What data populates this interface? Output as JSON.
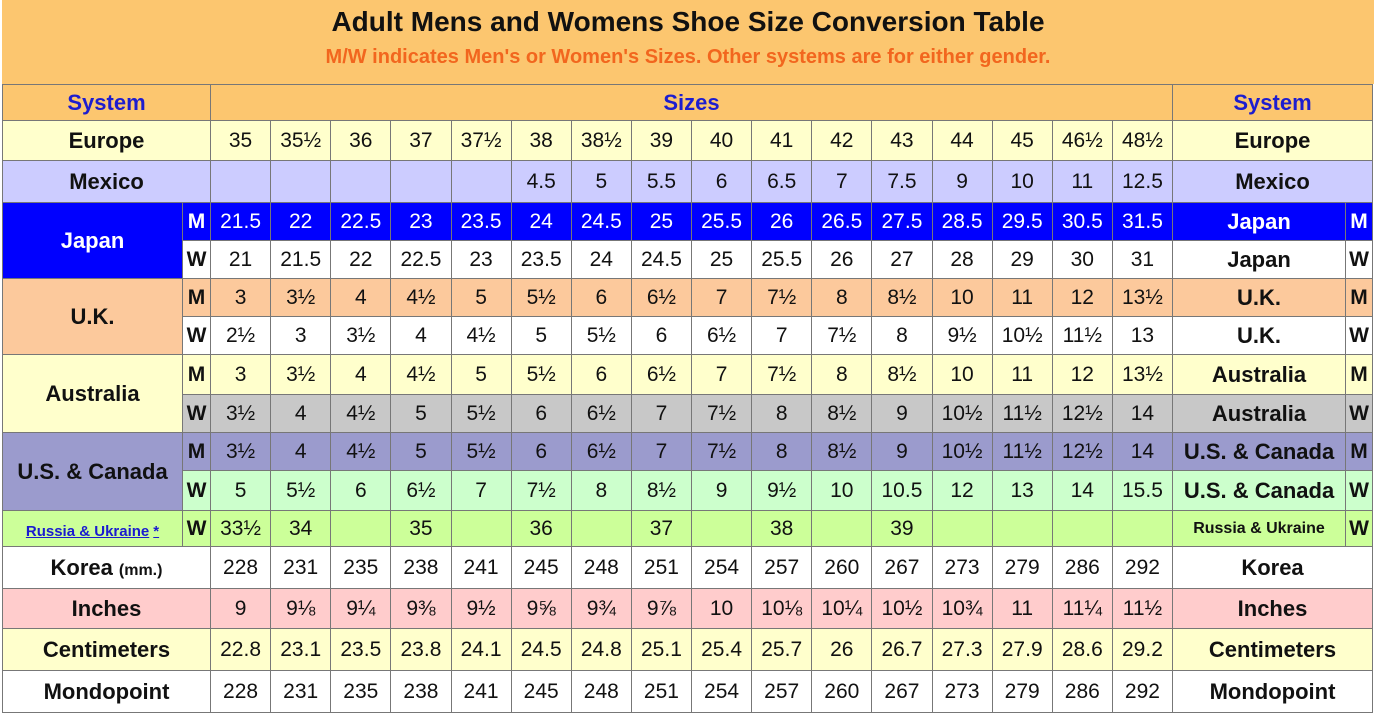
{
  "header": {
    "title": "Adult Mens and Womens Shoe Size Conversion Table",
    "subtitle": "M/W indicates Men's or Women's Sizes. Other systems are for either gender."
  },
  "table": {
    "columns": {
      "system": "System",
      "sizes": "Sizes",
      "system_right": "System"
    },
    "rows": [
      {
        "system": "Europe",
        "values": [
          35,
          "35½",
          36,
          37,
          "37½",
          38,
          "38½",
          39,
          40,
          41,
          42,
          43,
          44,
          45,
          "46½",
          "48½"
        ]
      },
      {
        "system": "Mexico",
        "values": [
          null,
          null,
          null,
          null,
          null,
          4.5,
          5,
          5.5,
          6,
          6.5,
          7,
          7.5,
          9,
          10,
          11,
          12.5
        ]
      },
      {
        "system": "Japan",
        "gender": "M",
        "values": [
          21.5,
          22,
          22.5,
          23,
          23.5,
          24,
          24.5,
          25,
          25.5,
          26,
          26.5,
          27.5,
          28.5,
          29.5,
          30.5,
          31.5
        ]
      },
      {
        "system": "Japan",
        "gender": "W",
        "values": [
          21,
          21.5,
          22,
          22.5,
          23,
          23.5,
          24,
          24.5,
          25,
          25.5,
          26,
          27,
          28,
          29,
          30,
          31
        ]
      },
      {
        "system": "U.K.",
        "gender": "M",
        "values": [
          3,
          "3½",
          4,
          "4½",
          5,
          "5½",
          6,
          "6½",
          7,
          "7½",
          8,
          "8½",
          10,
          11,
          12,
          "13½"
        ]
      },
      {
        "system": "U.K.",
        "gender": "W",
        "values": [
          "2½",
          3,
          "3½",
          4,
          "4½",
          5,
          "5½",
          6,
          "6½",
          7,
          "7½",
          8,
          "9½",
          "10½",
          "11½",
          13
        ]
      },
      {
        "system": "Australia",
        "gender": "M",
        "values": [
          3,
          "3½",
          4,
          "4½",
          5,
          "5½",
          6,
          "6½",
          7,
          "7½",
          8,
          "8½",
          10,
          11,
          12,
          "13½"
        ]
      },
      {
        "system": "Australia",
        "gender": "W",
        "values": [
          "3½",
          4,
          "4½",
          5,
          "5½",
          6,
          "6½",
          7,
          "7½",
          8,
          "8½",
          9,
          "10½",
          "11½",
          "12½",
          14
        ]
      },
      {
        "system": "U.S. & Canada",
        "gender": "M",
        "values": [
          "3½",
          4,
          "4½",
          5,
          "5½",
          6,
          "6½",
          7,
          "7½",
          8,
          "8½",
          9,
          "10½",
          "11½",
          "12½",
          14
        ]
      },
      {
        "system": "U.S. & Canada",
        "gender": "W",
        "values": [
          5,
          "5½",
          6,
          "6½",
          7,
          "7½",
          8,
          "8½",
          9,
          "9½",
          10,
          10.5,
          12,
          13,
          14,
          15.5
        ]
      },
      {
        "system": "Russia & Ukraine",
        "note": "*",
        "gender": "W",
        "values": [
          "33½",
          34,
          null,
          35,
          null,
          36,
          null,
          37,
          null,
          38,
          null,
          39,
          null,
          null,
          null,
          null
        ]
      },
      {
        "system": "Korea",
        "unit": "(mm.)",
        "values": [
          228,
          231,
          235,
          238,
          241,
          245,
          248,
          251,
          254,
          257,
          260,
          267,
          273,
          279,
          286,
          292
        ]
      },
      {
        "system": "Inches",
        "values": [
          "9",
          "9⅛",
          "9¼",
          "9⅜",
          "9½",
          "9⅝",
          "9¾",
          "9⅞",
          "10",
          "10⅛",
          "10¼",
          "10½",
          "10¾",
          "11",
          "11¼",
          "11½"
        ]
      },
      {
        "system": "Centimeters",
        "values": [
          22.8,
          23.1,
          23.5,
          23.8,
          24.1,
          24.5,
          24.8,
          25.1,
          25.4,
          25.7,
          26,
          26.7,
          27.3,
          27.9,
          28.6,
          29.2
        ]
      },
      {
        "system": "Mondopoint",
        "values": [
          228,
          231,
          235,
          238,
          241,
          245,
          248,
          251,
          254,
          257,
          260,
          267,
          273,
          279,
          286,
          292
        ]
      }
    ]
  }
}
